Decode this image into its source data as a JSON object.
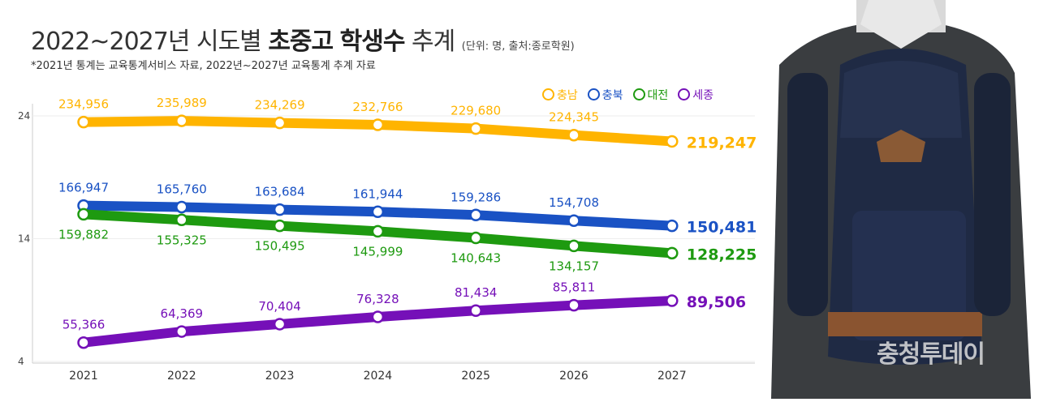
{
  "title": {
    "prefix": "2022~2027년 시도별 ",
    "bold1": "초중고",
    "bold2": "학생수",
    "suffix": " 추계",
    "unit": "(단위: 명, 출처:종로학원)"
  },
  "subtitle": "*2021년 통계는 교육통계서비스 자료, 2022년~2027년 교육통계 추계 자료",
  "watermark": "충청투데이",
  "chart_data": {
    "type": "line",
    "title": "2022~2027년 시도별 초중고 학생수 추계",
    "x": [
      "2021",
      "2022",
      "2023",
      "2024",
      "2025",
      "2026",
      "2027"
    ],
    "yticks": [
      "24",
      "14",
      "4"
    ],
    "ylim": [
      4,
      24
    ],
    "legend_position": "top-right",
    "grid": true,
    "series": [
      {
        "name": "충남",
        "color": "#FFB400",
        "values": [
          234956,
          235989,
          234269,
          232766,
          229680,
          224345,
          219247
        ],
        "labels": [
          "234,956",
          "235,989",
          "234,269",
          "232,766",
          "229,680",
          "224,345",
          "219,247"
        ]
      },
      {
        "name": "충북",
        "color": "#1A52C4",
        "values": [
          166947,
          165760,
          163684,
          161944,
          159286,
          154708,
          150481
        ],
        "labels": [
          "166,947",
          "165,760",
          "163,684",
          "161,944",
          "159,286",
          "154,708",
          "150,481"
        ]
      },
      {
        "name": "대전",
        "color": "#1E9A10",
        "values": [
          159882,
          155325,
          150495,
          145999,
          140643,
          134157,
          128225
        ],
        "labels": [
          "159,882",
          "155,325",
          "150,495",
          "145,999",
          "140,643",
          "134,157",
          "128,225"
        ]
      },
      {
        "name": "세종",
        "color": "#7510B8",
        "values": [
          55366,
          64369,
          70404,
          76328,
          81434,
          85811,
          89506
        ],
        "labels": [
          "55,366",
          "64,369",
          "70,404",
          "76,328",
          "81,434",
          "85,811",
          "89,506"
        ]
      }
    ]
  }
}
